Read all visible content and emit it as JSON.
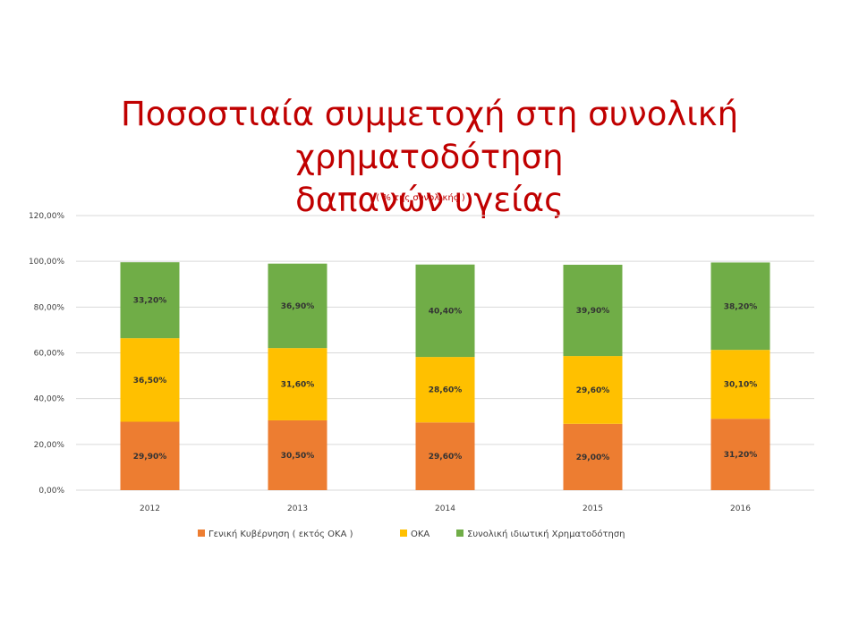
{
  "slide": {
    "title_line1": "Ποσοστιαία συμμετοχή στη συνολική χρηματοδότηση",
    "title_line2": "δαπανών υγείας"
  },
  "chart_data": {
    "type": "bar",
    "stacked": true,
    "subtitle": "( % της συνολικής )",
    "categories": [
      "2012",
      "2013",
      "2014",
      "2015",
      "2016"
    ],
    "series": [
      {
        "name": "Γενική Κυβέρνηση ( εκτός ΟΚΑ )",
        "color": "#ed7d31",
        "values": [
          29.9,
          30.5,
          29.6,
          29.0,
          31.2
        ],
        "labels": [
          "29,90%",
          "30,50%",
          "29,60%",
          "29,00%",
          "31,20%"
        ]
      },
      {
        "name": "ΟΚΑ",
        "color": "#ffc000",
        "values": [
          36.5,
          31.6,
          28.6,
          29.6,
          30.1
        ],
        "labels": [
          "36,50%",
          "31,60%",
          "28,60%",
          "29,60%",
          "30,10%"
        ]
      },
      {
        "name": "Συνολική ιδιωτική Χρηματοδότηση",
        "color": "#70ad47",
        "values": [
          33.2,
          36.9,
          40.4,
          39.9,
          38.2
        ],
        "labels": [
          "33,20%",
          "36,90%",
          "40,40%",
          "39,90%",
          "38,20%"
        ]
      }
    ],
    "ylim": [
      0,
      120
    ],
    "yticks": [
      0,
      20,
      40,
      60,
      80,
      100,
      120
    ],
    "ytick_labels": [
      "0,00%",
      "20,00%",
      "40,00%",
      "60,00%",
      "80,00%",
      "100,00%",
      "120,00%"
    ],
    "grid": true,
    "legend_position": "bottom"
  }
}
